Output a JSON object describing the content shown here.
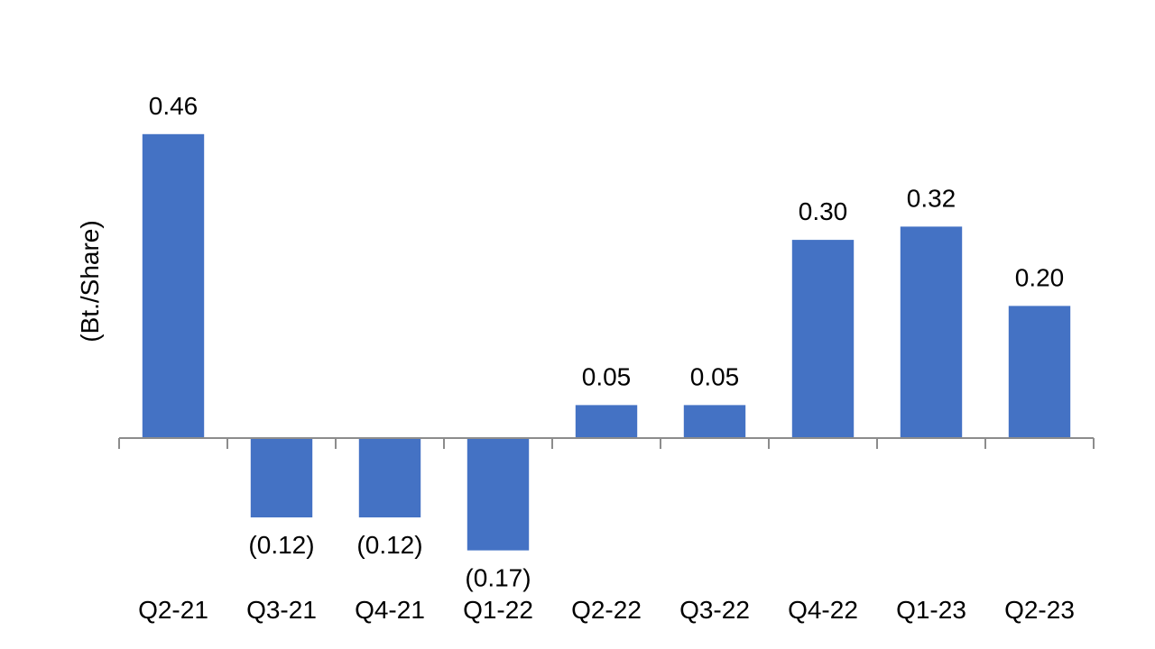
{
  "chart_data": {
    "type": "bar",
    "ylabel": "(Bt./Share)",
    "categories": [
      "Q2-21",
      "Q3-21",
      "Q4-21",
      "Q1-22",
      "Q2-22",
      "Q3-22",
      "Q4-22",
      "Q1-23",
      "Q2-23"
    ],
    "values": [
      0.46,
      -0.12,
      -0.12,
      -0.17,
      0.05,
      0.05,
      0.3,
      0.32,
      0.2
    ],
    "data_labels": [
      "0.46",
      "(0.12)",
      "(0.12)",
      "(0.17)",
      "0.05",
      "0.05",
      "0.30",
      "0.32",
      "0.20"
    ],
    "grid": false,
    "legend": "none",
    "bar_color": "#4472C4"
  }
}
